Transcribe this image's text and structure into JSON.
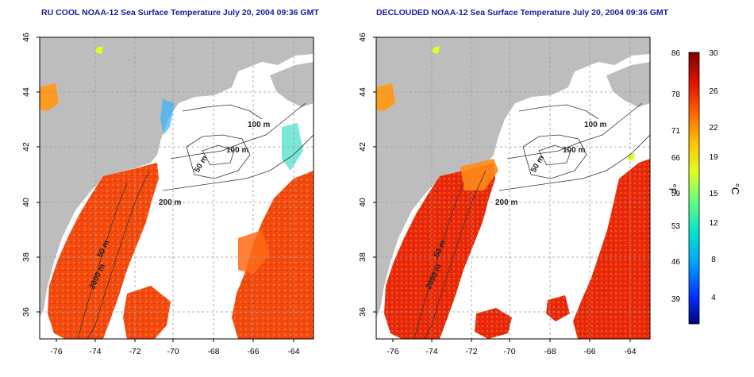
{
  "panels": [
    {
      "id": "left",
      "title": "RU COOL NOAA-12 Sea Surface Temperature July 20, 2004 09:36 GMT"
    },
    {
      "id": "right",
      "title": "DECLOUDED NOAA-12 Sea Surface Temperature July 20, 2004 09:36 GMT"
    }
  ],
  "map": {
    "lon_ticks": [
      "-76",
      "-74",
      "-72",
      "-70",
      "-68",
      "-66",
      "-64"
    ],
    "lat_ticks": [
      "46",
      "44",
      "42",
      "40",
      "38",
      "36"
    ],
    "contour_labels": [
      "100 m",
      "100 m",
      "50 m",
      "200 m",
      "50 m",
      "2000 m"
    ],
    "colors": {
      "land": "#bdbdbd",
      "cloud": "#ffffff",
      "grid": "#9a9a9a",
      "frame": "#000000"
    }
  },
  "colorbar": {
    "fahrenheit_label": "°F",
    "celsius_label": "°C",
    "fahrenheit_ticks": [
      "86",
      "78",
      "71",
      "66",
      "59",
      "53",
      "46",
      "39"
    ],
    "celsius_ticks": [
      "30",
      "26",
      "22",
      "19",
      "15",
      "12",
      "8",
      "4"
    ],
    "colors": [
      "#000080",
      "#0030ff",
      "#00a0ff",
      "#00e0d0",
      "#60ff80",
      "#e0ff20",
      "#ffc000",
      "#ff6000",
      "#e01000",
      "#800000"
    ]
  }
}
